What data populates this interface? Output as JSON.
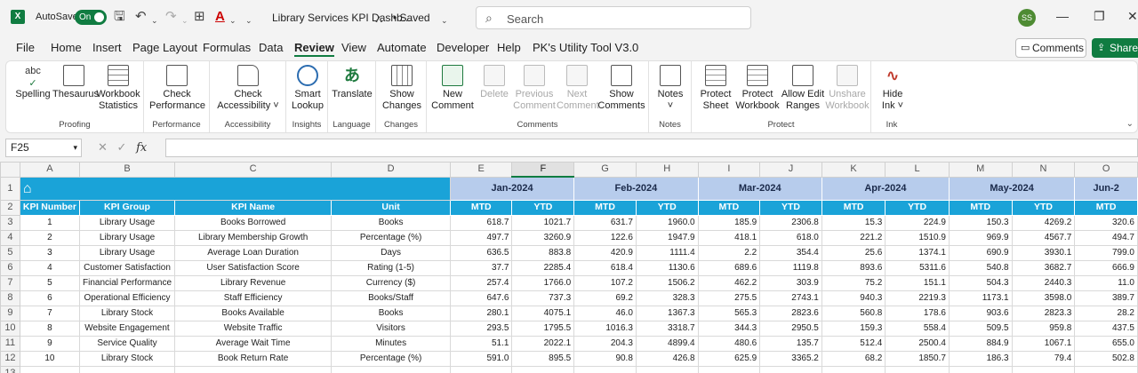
{
  "titlebar": {
    "app_icon": "X",
    "autosave_label": "AutoSave",
    "autosave_state": "On",
    "doc_title": "Library Services KPI Dashb...",
    "saved_label": "• Saved",
    "search_placeholder": "Search",
    "user_initials": "SS"
  },
  "menu": {
    "tabs": [
      "File",
      "Home",
      "Insert",
      "Page Layout",
      "Formulas",
      "Data",
      "Review",
      "View",
      "Automate",
      "Developer",
      "Help",
      "PK's Utility Tool V3.0"
    ],
    "active": "Review",
    "comments_label": "Comments",
    "share_label": "Share"
  },
  "ribbon": {
    "groups": {
      "proofing": {
        "label": "Proofing",
        "spelling": "Spelling",
        "thesaurus": "Thesaurus",
        "workbook_statistics_1": "Workbook",
        "workbook_statistics_2": "Statistics",
        "spelling_icon_text": "abc"
      },
      "performance": {
        "label": "Performance",
        "check_1": "Check",
        "check_2": "Performance"
      },
      "accessibility": {
        "label": "Accessibility",
        "check_1": "Check",
        "check_2": "Accessibility ˅"
      },
      "insights": {
        "label": "Insights",
        "smart_1": "Smart",
        "smart_2": "Lookup"
      },
      "language": {
        "label": "Language",
        "translate": "Translate"
      },
      "changes": {
        "label": "Changes",
        "show_1": "Show",
        "show_2": "Changes"
      },
      "comments": {
        "label": "Comments",
        "new_1": "New",
        "new_2": "Comment",
        "delete": "Delete",
        "prev_1": "Previous",
        "prev_2": "Comment",
        "next_1": "Next",
        "next_2": "Comment",
        "show_1": "Show",
        "show_2": "Comments"
      },
      "notes": {
        "label": "Notes",
        "notes_1": "Notes",
        "notes_2": "˅"
      },
      "protect": {
        "label": "Protect",
        "sheet_1": "Protect",
        "sheet_2": "Sheet",
        "wb_1": "Protect",
        "wb_2": "Workbook",
        "ranges_1": "Allow Edit",
        "ranges_2": "Ranges",
        "unshare_1": "Unshare",
        "unshare_2": "Workbook"
      },
      "ink": {
        "label": "Ink",
        "hide_1": "Hide",
        "hide_2": "Ink ˅"
      }
    }
  },
  "formula_bar": {
    "name_box": "F25",
    "fx": "fx",
    "cancel": "✕",
    "enter": "✓"
  },
  "sheet": {
    "column_letters": [
      "A",
      "B",
      "C",
      "D",
      "E",
      "F",
      "G",
      "H",
      "I",
      "J",
      "K",
      "L",
      "M",
      "N",
      "O"
    ],
    "selected_column": "F",
    "row_numbers": [
      "1",
      "2",
      "3",
      "4",
      "5",
      "6",
      "7",
      "8",
      "9",
      "10",
      "11",
      "12",
      "13"
    ],
    "months": [
      "Jan-2024",
      "Feb-2024",
      "Mar-2024",
      "Apr-2024",
      "May-2024",
      "Jun-2"
    ],
    "headers": [
      "KPI Number",
      "KPI Group",
      "KPI Name",
      "Unit",
      "MTD",
      "YTD",
      "MTD",
      "YTD",
      "MTD",
      "YTD",
      "MTD",
      "YTD",
      "MTD",
      "YTD",
      "MTD"
    ],
    "rows": [
      [
        "1",
        "Library Usage",
        "Books Borrowed",
        "Books",
        "618.7",
        "1021.7",
        "631.7",
        "1960.0",
        "185.9",
        "2306.8",
        "15.3",
        "224.9",
        "150.3",
        "4269.2",
        "320.6"
      ],
      [
        "2",
        "Library Usage",
        "Library Membership Growth",
        "Percentage (%)",
        "497.7",
        "3260.9",
        "122.6",
        "1947.9",
        "418.1",
        "618.0",
        "221.2",
        "1510.9",
        "969.9",
        "4567.7",
        "494.7"
      ],
      [
        "3",
        "Library Usage",
        "Average Loan Duration",
        "Days",
        "636.5",
        "883.8",
        "420.9",
        "1111.4",
        "2.2",
        "354.4",
        "25.6",
        "1374.1",
        "690.9",
        "3930.1",
        "799.0"
      ],
      [
        "4",
        "Customer Satisfaction",
        "User Satisfaction Score",
        "Rating (1-5)",
        "37.7",
        "2285.4",
        "618.4",
        "1130.6",
        "689.6",
        "1119.8",
        "893.6",
        "5311.6",
        "540.8",
        "3682.7",
        "666.9"
      ],
      [
        "5",
        "Financial Performance",
        "Library Revenue",
        "Currency ($)",
        "257.4",
        "1766.0",
        "107.2",
        "1506.2",
        "462.2",
        "303.9",
        "75.2",
        "151.1",
        "504.3",
        "2440.3",
        "11.0"
      ],
      [
        "6",
        "Operational Efficiency",
        "Staff Efficiency",
        "Books/Staff",
        "647.6",
        "737.3",
        "69.2",
        "328.3",
        "275.5",
        "2743.1",
        "940.3",
        "2219.3",
        "1173.1",
        "3598.0",
        "389.7"
      ],
      [
        "7",
        "Library Stock",
        "Books Available",
        "Books",
        "280.1",
        "4075.1",
        "46.0",
        "1367.3",
        "565.3",
        "2823.6",
        "560.8",
        "178.6",
        "903.6",
        "2823.3",
        "28.2"
      ],
      [
        "8",
        "Website Engagement",
        "Website Traffic",
        "Visitors",
        "293.5",
        "1795.5",
        "1016.3",
        "3318.7",
        "344.3",
        "2950.5",
        "159.3",
        "558.4",
        "509.5",
        "959.8",
        "437.5"
      ],
      [
        "9",
        "Service Quality",
        "Average Wait Time",
        "Minutes",
        "51.1",
        "2022.1",
        "204.3",
        "4899.4",
        "480.6",
        "135.7",
        "512.4",
        "2500.4",
        "884.9",
        "1067.1",
        "655.0"
      ],
      [
        "10",
        "Library Stock",
        "Book Return Rate",
        "Percentage (%)",
        "591.0",
        "895.5",
        "90.8",
        "426.8",
        "625.9",
        "3365.2",
        "68.2",
        "1850.7",
        "186.3",
        "79.4",
        "502.8"
      ]
    ]
  }
}
